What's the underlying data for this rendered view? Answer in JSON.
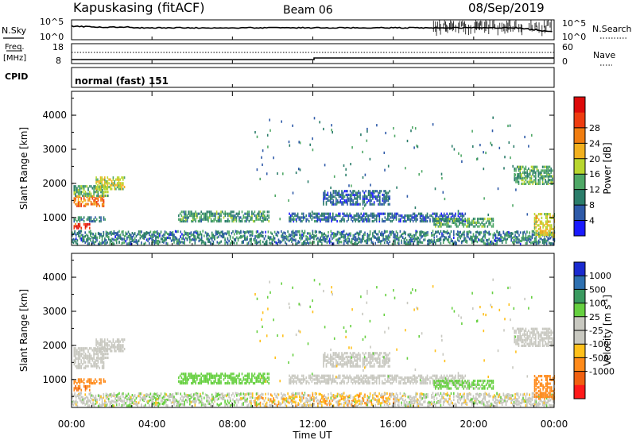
{
  "header": {
    "station": "Kapuskasing (fitACF)",
    "beam": "Beam 06",
    "date": "08/Sep/2019"
  },
  "chart_data": {
    "type": "heatmap",
    "top_panels": {
      "nsky": {
        "label": "N.Sky",
        "ticks": [
          "10^5",
          "10^0"
        ],
        "right_ticks": [
          "10^5",
          "10^0"
        ],
        "right_label": "N.Search"
      },
      "freq": {
        "label_top": "Freq.",
        "label_bottom": "[MHz]",
        "ticks": [
          "18",
          "8"
        ],
        "right_ticks": [
          "60",
          "0"
        ],
        "right_label": "Nave"
      },
      "cpid": {
        "label": "CPID",
        "value": "normal (fast) 151"
      }
    },
    "x_axis": {
      "label": "Time UT",
      "range_hours": [
        0,
        24
      ],
      "ticks": [
        {
          "h": 0,
          "label": "00:00"
        },
        {
          "h": 4,
          "label": "04:00"
        },
        {
          "h": 8,
          "label": "08:00"
        },
        {
          "h": 12,
          "label": "12:00"
        },
        {
          "h": 16,
          "label": "16:00"
        },
        {
          "h": 20,
          "label": "20:00"
        },
        {
          "h": 24,
          "label": "00:00"
        }
      ]
    },
    "y_axis": {
      "label": "Slant Range [km]",
      "range_km": [
        180,
        4700
      ],
      "ticks": [
        {
          "v": 1000,
          "label": "1000"
        },
        {
          "v": 2000,
          "label": "2000"
        },
        {
          "v": 3000,
          "label": "3000"
        },
        {
          "v": 4000,
          "label": "4000"
        }
      ]
    },
    "power_scale": {
      "label": "Power [dB]",
      "colors": [
        "#1a1aff",
        "#2e5aa8",
        "#2b7d6a",
        "#4fa866",
        "#b8d62e",
        "#f2b01e",
        "#f07d10",
        "#ee3c10",
        "#dd0a0a"
      ],
      "tick_labels": [
        "4",
        "8",
        "12",
        "16",
        "20",
        "24",
        "28"
      ]
    },
    "velocity_scale": {
      "label": "Velocity [m s^-1]",
      "colors": [
        "#ff1a1a",
        "#f06010",
        "#ff8a1a",
        "#ffc01a",
        "#c8c8c0",
        "#c8c8c0",
        "#66d040",
        "#3a9a60",
        "#2e70b0",
        "#1a2ad0"
      ],
      "tick_labels": [
        "1000",
        "500",
        "100",
        "25",
        "-25",
        "-100",
        "-500",
        "-1000"
      ]
    },
    "echo_regions": [
      {
        "t0": 0.1,
        "t1": 1.6,
        "r0": 1300,
        "r1": 1600,
        "power": 24,
        "velocity": 0
      },
      {
        "t0": 0.1,
        "t1": 1.8,
        "r0": 1600,
        "r1": 1900,
        "power": 14,
        "velocity": 0
      },
      {
        "t0": 1.2,
        "t1": 2.6,
        "r0": 1800,
        "r1": 2150,
        "power": 17,
        "velocity": 0
      },
      {
        "t0": 0.1,
        "t1": 0.9,
        "r0": 650,
        "r1": 800,
        "power": 28,
        "velocity": -500
      },
      {
        "t0": 0.1,
        "t1": 1.7,
        "r0": 850,
        "r1": 1000,
        "power": 10,
        "velocity": -200
      },
      {
        "t0": 5.3,
        "t1": 9.8,
        "r0": 850,
        "r1": 1150,
        "power": 12,
        "velocity": 60
      },
      {
        "t0": 10.8,
        "t1": 19.6,
        "r0": 850,
        "r1": 1100,
        "power": 8,
        "velocity": 0
      },
      {
        "t0": 12.5,
        "t1": 15.8,
        "r0": 1350,
        "r1": 1750,
        "power": 8,
        "velocity": 0
      },
      {
        "t0": 18.0,
        "t1": 21.0,
        "r0": 700,
        "r1": 950,
        "power": 13,
        "velocity": 40
      },
      {
        "t0": 22.0,
        "t1": 23.9,
        "r0": 1950,
        "r1": 2450,
        "power": 13,
        "velocity": 0
      },
      {
        "t0": 23.0,
        "t1": 24.0,
        "r0": 400,
        "r1": 1100,
        "power": 18,
        "velocity": -200
      }
    ],
    "ground_scatter": {
      "t0": 0.0,
      "t1": 24.0,
      "r0": 180,
      "r1": 560,
      "power": 10,
      "velocity": 0
    }
  }
}
